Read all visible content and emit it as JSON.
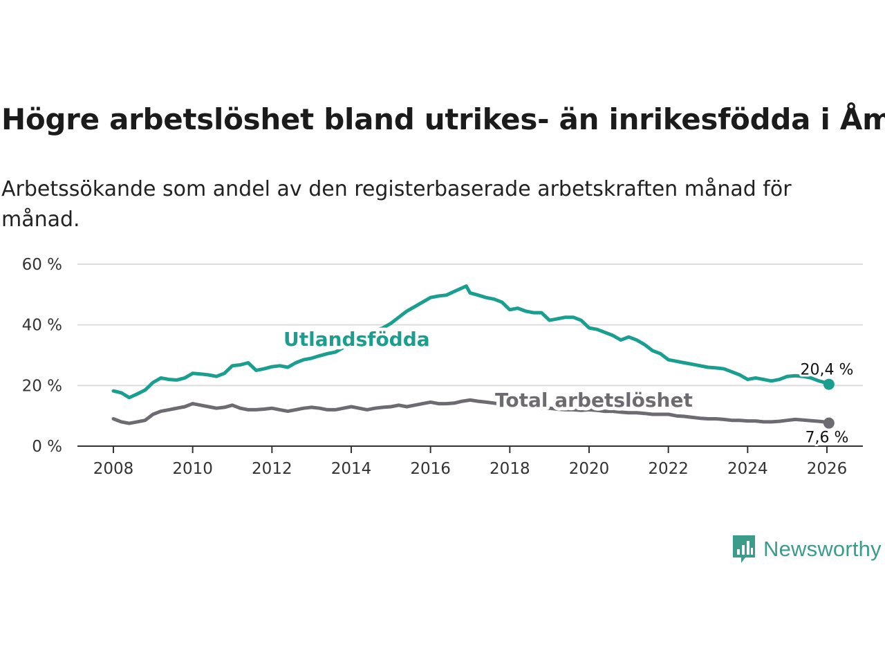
{
  "title": "Högre arbetslöshet bland utrikes- än inrikesfödda i Åmål",
  "subtitle": "Arbetssökande som andel av den registerbaserade arbetskraften månad för månad.",
  "logo": {
    "text": "Newsworthy",
    "icon": "newsworthy-logo-icon",
    "color": "#3b9c8c"
  },
  "chart_data": {
    "type": "line",
    "title": "Högre arbetslöshet bland utrikes- än inrikesfödda i Åmål",
    "subtitle": "Arbetssökande som andel av den registerbaserade arbetskraften månad för månad.",
    "xlabel": "",
    "ylabel": "",
    "xlim": [
      2007.7,
      2026.9
    ],
    "ylim": [
      0,
      60
    ],
    "y_ticks": [
      0,
      20,
      40,
      60
    ],
    "y_tick_labels": [
      "0 %",
      "20 %",
      "40 %",
      "60 %"
    ],
    "x_ticks": [
      2008,
      2010,
      2012,
      2014,
      2016,
      2018,
      2020,
      2022,
      2024,
      2026
    ],
    "x_tick_labels": [
      "2008",
      "2010",
      "2012",
      "2014",
      "2016",
      "2018",
      "2020",
      "2022",
      "2024",
      "2026"
    ],
    "grid": true,
    "series": [
      {
        "name": "Utlandsfödda",
        "color": "#1a9e8f",
        "end_label": "20,4 %",
        "x": [
          2008.0,
          2008.2,
          2008.4,
          2008.6,
          2008.8,
          2009.0,
          2009.2,
          2009.4,
          2009.6,
          2009.8,
          2010.0,
          2010.2,
          2010.4,
          2010.6,
          2010.8,
          2011.0,
          2011.2,
          2011.4,
          2011.6,
          2011.8,
          2012.0,
          2012.2,
          2012.4,
          2012.6,
          2012.8,
          2013.0,
          2013.2,
          2013.4,
          2013.6,
          2013.8,
          2014.0,
          2014.2,
          2014.4,
          2014.6,
          2014.8,
          2015.0,
          2015.2,
          2015.4,
          2015.6,
          2015.8,
          2016.0,
          2016.2,
          2016.4,
          2016.6,
          2016.9,
          2017.0,
          2017.2,
          2017.4,
          2017.6,
          2017.8,
          2018.0,
          2018.2,
          2018.4,
          2018.6,
          2018.8,
          2019.0,
          2019.2,
          2019.4,
          2019.6,
          2019.8,
          2020.0,
          2020.2,
          2020.4,
          2020.6,
          2020.8,
          2021.0,
          2021.2,
          2021.4,
          2021.6,
          2021.8,
          2022.0,
          2022.2,
          2022.4,
          2022.6,
          2022.8,
          2023.0,
          2023.2,
          2023.4,
          2023.6,
          2023.8,
          2024.0,
          2024.2,
          2024.4,
          2024.6,
          2024.8,
          2025.0,
          2025.2,
          2025.4,
          2025.6,
          2025.8,
          2026.0,
          2026.05
        ],
        "values": [
          18.2,
          17.6,
          16.0,
          17.2,
          18.5,
          21.0,
          22.5,
          22.0,
          21.8,
          22.5,
          24.0,
          23.8,
          23.5,
          23.0,
          24.0,
          26.5,
          26.8,
          27.5,
          25.0,
          25.5,
          26.2,
          26.5,
          26.0,
          27.5,
          28.5,
          29.0,
          29.8,
          30.5,
          31.0,
          32.5,
          34.0,
          35.5,
          36.5,
          38.0,
          39.0,
          40.5,
          42.5,
          44.5,
          46.0,
          47.5,
          49.0,
          49.5,
          49.8,
          51.0,
          52.8,
          50.5,
          49.8,
          49.0,
          48.5,
          47.5,
          45.0,
          45.5,
          44.5,
          44.0,
          44.0,
          41.5,
          42.0,
          42.5,
          42.5,
          41.5,
          39.0,
          38.5,
          37.5,
          36.5,
          35.0,
          36.0,
          35.0,
          33.5,
          31.5,
          30.5,
          28.5,
          28.0,
          27.5,
          27.0,
          26.5,
          26.0,
          25.8,
          25.5,
          24.5,
          23.5,
          22.0,
          22.5,
          22.0,
          21.5,
          22.0,
          23.0,
          23.2,
          23.0,
          22.5,
          21.5,
          20.8,
          20.4
        ]
      },
      {
        "name": "Total arbetslöshet",
        "color": "#6d6a72",
        "end_label": "7,6 %",
        "x": [
          2008.0,
          2008.2,
          2008.4,
          2008.6,
          2008.8,
          2009.0,
          2009.2,
          2009.4,
          2009.6,
          2009.8,
          2010.0,
          2010.2,
          2010.4,
          2010.6,
          2010.8,
          2011.0,
          2011.2,
          2011.4,
          2011.6,
          2011.8,
          2012.0,
          2012.2,
          2012.4,
          2012.6,
          2012.8,
          2013.0,
          2013.2,
          2013.4,
          2013.6,
          2013.8,
          2014.0,
          2014.2,
          2014.4,
          2014.6,
          2014.8,
          2015.0,
          2015.2,
          2015.4,
          2015.6,
          2015.8,
          2016.0,
          2016.2,
          2016.4,
          2016.6,
          2016.8,
          2017.0,
          2017.2,
          2017.4,
          2017.6,
          2017.8,
          2018.0,
          2018.2,
          2018.4,
          2018.6,
          2018.8,
          2019.0,
          2019.2,
          2019.4,
          2019.6,
          2019.8,
          2020.0,
          2020.2,
          2020.4,
          2020.6,
          2020.8,
          2021.0,
          2021.2,
          2021.4,
          2021.6,
          2021.8,
          2022.0,
          2022.2,
          2022.4,
          2022.6,
          2022.8,
          2023.0,
          2023.2,
          2023.4,
          2023.6,
          2023.8,
          2024.0,
          2024.2,
          2024.4,
          2024.6,
          2024.8,
          2025.0,
          2025.2,
          2025.4,
          2025.6,
          2025.8,
          2026.0,
          2026.05
        ],
        "values": [
          9.0,
          8.0,
          7.5,
          8.0,
          8.5,
          10.5,
          11.5,
          12.0,
          12.5,
          13.0,
          14.0,
          13.5,
          13.0,
          12.5,
          12.8,
          13.5,
          12.5,
          12.0,
          12.0,
          12.2,
          12.5,
          12.0,
          11.5,
          12.0,
          12.5,
          12.8,
          12.5,
          12.0,
          12.0,
          12.5,
          13.0,
          12.5,
          12.0,
          12.5,
          12.8,
          13.0,
          13.5,
          13.0,
          13.5,
          14.0,
          14.5,
          14.0,
          14.0,
          14.2,
          14.8,
          15.2,
          14.8,
          14.5,
          14.2,
          13.8,
          13.5,
          13.2,
          13.0,
          12.8,
          12.5,
          12.5,
          12.2,
          12.0,
          12.0,
          11.8,
          12.0,
          11.8,
          11.5,
          11.5,
          11.2,
          11.0,
          11.0,
          10.8,
          10.5,
          10.5,
          10.5,
          10.0,
          9.8,
          9.5,
          9.2,
          9.0,
          9.0,
          8.8,
          8.5,
          8.5,
          8.3,
          8.3,
          8.0,
          8.0,
          8.2,
          8.5,
          8.8,
          8.6,
          8.4,
          8.2,
          7.9,
          7.6
        ]
      }
    ]
  }
}
